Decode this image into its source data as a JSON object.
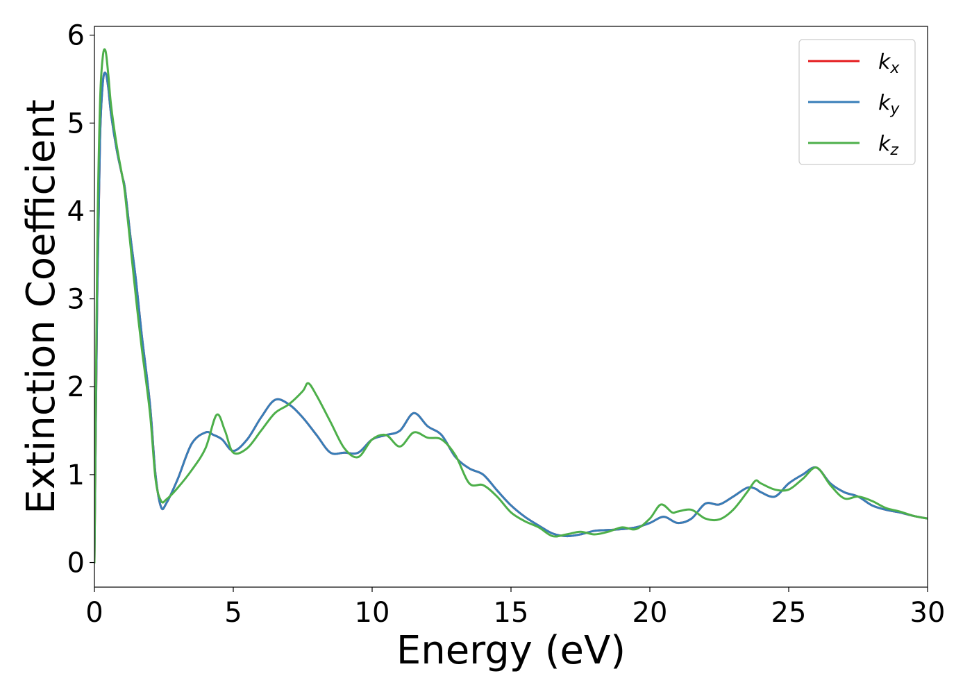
{
  "chart_data": {
    "type": "line",
    "xlabel": "Energy (eV)",
    "ylabel": "Extinction Coefficient",
    "xlim": [
      0,
      30
    ],
    "ylim": [
      -0.28,
      6.1
    ],
    "xticks": [
      0,
      5,
      10,
      15,
      20,
      25,
      30
    ],
    "yticks": [
      0,
      1,
      2,
      3,
      4,
      5,
      6
    ],
    "grid": false,
    "legend_position": "top-right",
    "series": [
      {
        "name": "k_x",
        "legend_base": "k",
        "legend_sub": "x",
        "color": "#e41a1c",
        "x": [
          0,
          0.1,
          0.2,
          0.3,
          0.4,
          0.5,
          0.6,
          0.8,
          1.0,
          1.1,
          1.3,
          1.5,
          1.7,
          2.0,
          2.2,
          2.4,
          2.6,
          3.0,
          3.5,
          4.0,
          4.3,
          4.6,
          5.0,
          5.5,
          6.0,
          6.5,
          7.0,
          7.5,
          8.0,
          8.5,
          9.0,
          9.5,
          10.0,
          10.5,
          11.0,
          11.5,
          12.0,
          12.5,
          13.0,
          13.5,
          14.0,
          14.5,
          15.0,
          15.5,
          16.0,
          16.5,
          17.0,
          17.5,
          18.0,
          18.5,
          19.0,
          19.5,
          20.0,
          20.5,
          21.0,
          21.5,
          22.0,
          22.5,
          23.0,
          23.5,
          23.8,
          24.0,
          24.5,
          25.0,
          25.5,
          26.0,
          26.5,
          27.0,
          27.5,
          28.0,
          28.5,
          29.0,
          29.5,
          30.0
        ],
        "values": [
          0.0,
          3.0,
          4.8,
          5.45,
          5.57,
          5.4,
          5.1,
          4.7,
          4.4,
          4.25,
          3.7,
          3.2,
          2.6,
          1.8,
          1.0,
          0.63,
          0.68,
          0.95,
          1.35,
          1.48,
          1.45,
          1.4,
          1.27,
          1.4,
          1.65,
          1.85,
          1.8,
          1.65,
          1.45,
          1.25,
          1.25,
          1.25,
          1.4,
          1.45,
          1.5,
          1.7,
          1.55,
          1.45,
          1.2,
          1.07,
          1.0,
          0.82,
          0.65,
          0.52,
          0.42,
          0.33,
          0.3,
          0.32,
          0.36,
          0.37,
          0.38,
          0.4,
          0.45,
          0.52,
          0.45,
          0.5,
          0.67,
          0.66,
          0.75,
          0.85,
          0.84,
          0.8,
          0.75,
          0.9,
          1.0,
          1.08,
          0.9,
          0.8,
          0.75,
          0.65,
          0.6,
          0.57,
          0.53,
          0.5
        ]
      },
      {
        "name": "k_y",
        "legend_base": "k",
        "legend_sub": "y",
        "color": "#377eb8",
        "x": [
          0,
          0.1,
          0.2,
          0.3,
          0.4,
          0.5,
          0.6,
          0.8,
          1.0,
          1.1,
          1.3,
          1.5,
          1.7,
          2.0,
          2.2,
          2.4,
          2.6,
          3.0,
          3.5,
          4.0,
          4.3,
          4.6,
          5.0,
          5.5,
          6.0,
          6.5,
          7.0,
          7.5,
          8.0,
          8.5,
          9.0,
          9.5,
          10.0,
          10.5,
          11.0,
          11.5,
          12.0,
          12.5,
          13.0,
          13.5,
          14.0,
          14.5,
          15.0,
          15.5,
          16.0,
          16.5,
          17.0,
          17.5,
          18.0,
          18.5,
          19.0,
          19.5,
          20.0,
          20.5,
          21.0,
          21.5,
          22.0,
          22.5,
          23.0,
          23.5,
          23.8,
          24.0,
          24.5,
          25.0,
          25.5,
          26.0,
          26.5,
          27.0,
          27.5,
          28.0,
          28.5,
          29.0,
          29.5,
          30.0
        ],
        "values": [
          0.0,
          3.0,
          4.8,
          5.45,
          5.57,
          5.4,
          5.1,
          4.7,
          4.4,
          4.25,
          3.7,
          3.2,
          2.6,
          1.8,
          1.0,
          0.63,
          0.68,
          0.95,
          1.35,
          1.48,
          1.45,
          1.4,
          1.27,
          1.4,
          1.65,
          1.85,
          1.8,
          1.65,
          1.45,
          1.25,
          1.25,
          1.25,
          1.4,
          1.45,
          1.5,
          1.7,
          1.55,
          1.45,
          1.2,
          1.07,
          1.0,
          0.82,
          0.65,
          0.52,
          0.42,
          0.33,
          0.3,
          0.32,
          0.36,
          0.37,
          0.38,
          0.4,
          0.45,
          0.52,
          0.45,
          0.5,
          0.67,
          0.66,
          0.75,
          0.85,
          0.84,
          0.8,
          0.75,
          0.9,
          1.0,
          1.08,
          0.9,
          0.8,
          0.75,
          0.65,
          0.6,
          0.57,
          0.53,
          0.5
        ]
      },
      {
        "name": "k_z",
        "legend_base": "k",
        "legend_sub": "z",
        "color": "#4daf4a",
        "x": [
          0,
          0.1,
          0.2,
          0.3,
          0.4,
          0.5,
          0.6,
          0.8,
          1.0,
          1.1,
          1.3,
          1.5,
          1.7,
          2.0,
          2.2,
          2.4,
          2.6,
          3.0,
          3.5,
          4.0,
          4.4,
          4.7,
          5.0,
          5.5,
          6.0,
          6.5,
          7.0,
          7.5,
          7.7,
          8.0,
          8.5,
          9.0,
          9.5,
          10.0,
          10.5,
          11.0,
          11.5,
          12.0,
          12.5,
          13.0,
          13.5,
          14.0,
          14.5,
          15.0,
          15.5,
          16.0,
          16.5,
          17.0,
          17.5,
          18.0,
          18.5,
          19.0,
          19.5,
          20.0,
          20.4,
          20.8,
          21.0,
          21.5,
          22.0,
          22.5,
          23.0,
          23.5,
          23.8,
          24.0,
          24.5,
          25.0,
          25.5,
          26.0,
          26.5,
          27.0,
          27.5,
          28.0,
          28.5,
          29.0,
          29.5,
          30.0
        ],
        "values": [
          0.0,
          3.5,
          5.2,
          5.75,
          5.82,
          5.55,
          5.2,
          4.75,
          4.4,
          4.2,
          3.6,
          3.0,
          2.45,
          1.7,
          0.95,
          0.7,
          0.72,
          0.85,
          1.05,
          1.3,
          1.68,
          1.5,
          1.25,
          1.3,
          1.5,
          1.7,
          1.8,
          1.95,
          2.04,
          1.9,
          1.6,
          1.3,
          1.2,
          1.4,
          1.45,
          1.32,
          1.48,
          1.42,
          1.4,
          1.22,
          0.9,
          0.88,
          0.75,
          0.57,
          0.47,
          0.4,
          0.3,
          0.32,
          0.35,
          0.32,
          0.35,
          0.4,
          0.38,
          0.5,
          0.66,
          0.57,
          0.58,
          0.6,
          0.5,
          0.49,
          0.6,
          0.8,
          0.93,
          0.9,
          0.83,
          0.83,
          0.95,
          1.08,
          0.88,
          0.73,
          0.75,
          0.7,
          0.62,
          0.58,
          0.53,
          0.5
        ]
      }
    ]
  }
}
